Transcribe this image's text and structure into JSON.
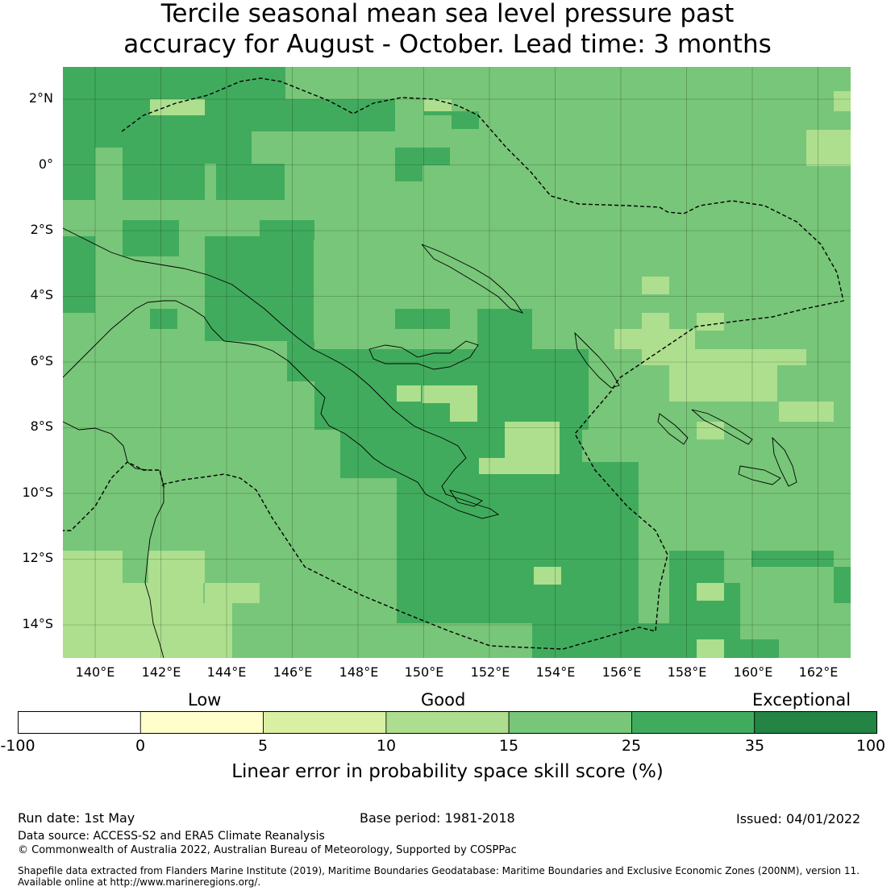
{
  "title": {
    "line1": "Tercile seasonal mean sea level pressure past",
    "line2": "accuracy for August - October. Lead time: 3 months"
  },
  "map": {
    "lat_labels": [
      "2°N",
      "0°",
      "2°S",
      "4°S",
      "6°S",
      "8°S",
      "10°S",
      "12°S",
      "14°S"
    ],
    "lon_labels": [
      "140°E",
      "142°E",
      "144°E",
      "146°E",
      "148°E",
      "150°E",
      "152°E",
      "154°E",
      "156°E",
      "158°E",
      "160°E",
      "162°E"
    ],
    "category_colors": {
      "10-15": "#addf8e",
      "15-25": "#78c679",
      "25-35": "#41ab5d"
    }
  },
  "colorbar": {
    "category_labels": {
      "low": "Low",
      "good": "Good",
      "exceptional": "Exceptional"
    },
    "ticks": [
      "-100",
      "0",
      "5",
      "10",
      "15",
      "25",
      "35",
      "100"
    ],
    "colors": [
      "#ffffff",
      "#ffffcc",
      "#d9f0a3",
      "#addd8e",
      "#78c679",
      "#41ab5d",
      "#238443"
    ],
    "caption": "Linear error in probability space skill score (%)"
  },
  "footer": {
    "run_date": "Run date: 1st May",
    "base_period": "Base period: 1981-2018",
    "issued": "Issued: 04/01/2022",
    "data_source": "Data source: ACCESS-S2 and ERA5 Climate Reanalysis",
    "copyright": "© Commonwealth of Australia 2022, Australian Bureau of Meteorology, Supported by COSPPac",
    "shapefile_line1": "Shapefile data extracted from Flanders Marine Institute (2019), Maritime Boundaries Geodatabase: Maritime Boundaries and Exclusive Economic Zones (200NM), version 11.",
    "shapefile_line2": "Available online at http://www.marineregions.org/."
  }
}
